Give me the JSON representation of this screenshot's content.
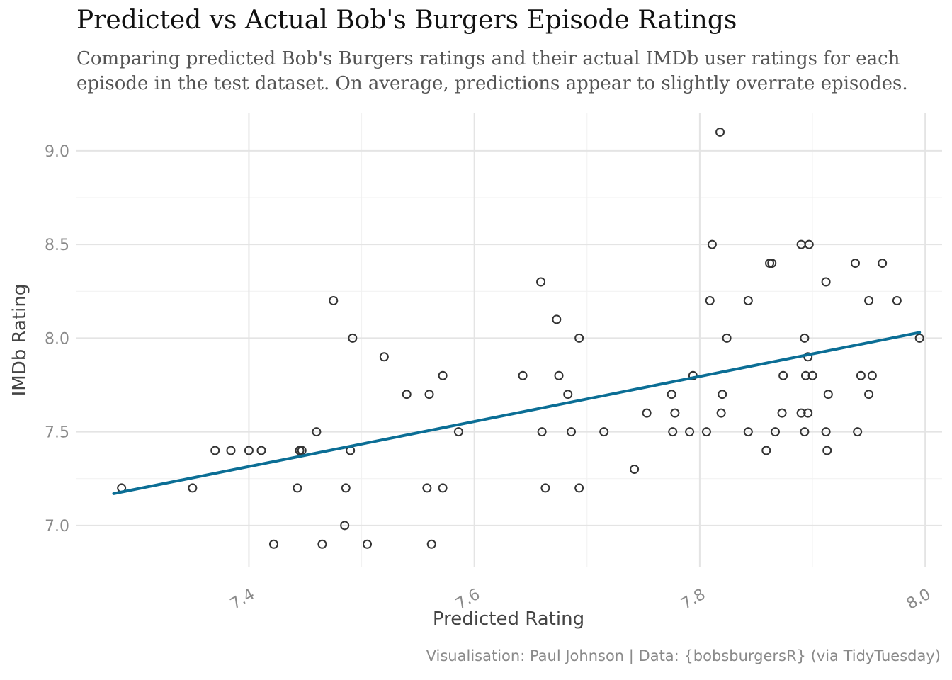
{
  "chart_data": {
    "type": "scatter",
    "title": "Predicted vs Actual Bob's Burgers Episode Ratings",
    "subtitle_lines": [
      "Comparing predicted Bob's Burgers ratings and their actual IMDb user ratings for each",
      "episode in the test dataset. On average, predictions appear to slightly overrate episodes."
    ],
    "xlabel": "Predicted Rating",
    "ylabel": "IMDb Rating",
    "caption": "Visualisation: Paul Johnson | Data: {bobsburgersR} (via TidyTuesday)",
    "xlim": [
      7.247,
      8.015
    ],
    "ylim": [
      6.78,
      9.2
    ],
    "x_ticks": [
      7.4,
      7.6,
      7.8,
      8.0
    ],
    "x_tick_labels": [
      "7.4",
      "7.6",
      "7.8",
      "8.0"
    ],
    "y_ticks": [
      7.0,
      7.5,
      8.0,
      8.5,
      9.0
    ],
    "y_tick_labels": [
      "7.0",
      "7.5",
      "8.0",
      "8.5",
      "9.0"
    ],
    "grid": true,
    "point_color": "#333333",
    "trend_color": "#0b6e95",
    "trend_line": {
      "x": [
        7.28,
        7.995
      ],
      "y": [
        7.17,
        8.03
      ]
    },
    "points": [
      {
        "x": 7.287,
        "y": 7.2
      },
      {
        "x": 7.35,
        "y": 7.2
      },
      {
        "x": 7.37,
        "y": 7.4
      },
      {
        "x": 7.384,
        "y": 7.4
      },
      {
        "x": 7.4,
        "y": 7.4
      },
      {
        "x": 7.411,
        "y": 7.4
      },
      {
        "x": 7.422,
        "y": 6.9
      },
      {
        "x": 7.443,
        "y": 7.2
      },
      {
        "x": 7.445,
        "y": 7.4
      },
      {
        "x": 7.447,
        "y": 7.4
      },
      {
        "x": 7.46,
        "y": 7.5
      },
      {
        "x": 7.465,
        "y": 6.9
      },
      {
        "x": 7.475,
        "y": 8.2
      },
      {
        "x": 7.485,
        "y": 7.0
      },
      {
        "x": 7.486,
        "y": 7.2
      },
      {
        "x": 7.49,
        "y": 7.4
      },
      {
        "x": 7.492,
        "y": 8.0
      },
      {
        "x": 7.505,
        "y": 6.9
      },
      {
        "x": 7.52,
        "y": 7.9
      },
      {
        "x": 7.54,
        "y": 7.7
      },
      {
        "x": 7.558,
        "y": 7.2
      },
      {
        "x": 7.56,
        "y": 7.7
      },
      {
        "x": 7.562,
        "y": 6.9
      },
      {
        "x": 7.572,
        "y": 7.2
      },
      {
        "x": 7.572,
        "y": 7.8
      },
      {
        "x": 7.586,
        "y": 7.5
      },
      {
        "x": 7.643,
        "y": 7.8
      },
      {
        "x": 7.659,
        "y": 8.3
      },
      {
        "x": 7.66,
        "y": 7.5
      },
      {
        "x": 7.663,
        "y": 7.2
      },
      {
        "x": 7.673,
        "y": 8.1
      },
      {
        "x": 7.675,
        "y": 7.8
      },
      {
        "x": 7.683,
        "y": 7.7
      },
      {
        "x": 7.686,
        "y": 7.5
      },
      {
        "x": 7.693,
        "y": 8.0
      },
      {
        "x": 7.693,
        "y": 7.2
      },
      {
        "x": 7.715,
        "y": 7.5
      },
      {
        "x": 7.742,
        "y": 7.3
      },
      {
        "x": 7.753,
        "y": 7.6
      },
      {
        "x": 7.775,
        "y": 7.7
      },
      {
        "x": 7.776,
        "y": 7.5
      },
      {
        "x": 7.778,
        "y": 7.6
      },
      {
        "x": 7.791,
        "y": 7.5
      },
      {
        "x": 7.794,
        "y": 7.8
      },
      {
        "x": 7.806,
        "y": 7.5
      },
      {
        "x": 7.809,
        "y": 8.2
      },
      {
        "x": 7.811,
        "y": 8.5
      },
      {
        "x": 7.818,
        "y": 9.1
      },
      {
        "x": 7.819,
        "y": 7.6
      },
      {
        "x": 7.82,
        "y": 7.7
      },
      {
        "x": 7.824,
        "y": 8.0
      },
      {
        "x": 7.843,
        "y": 7.5
      },
      {
        "x": 7.843,
        "y": 8.2
      },
      {
        "x": 7.859,
        "y": 7.4
      },
      {
        "x": 7.862,
        "y": 8.4
      },
      {
        "x": 7.864,
        "y": 8.4
      },
      {
        "x": 7.867,
        "y": 7.5
      },
      {
        "x": 7.873,
        "y": 7.6
      },
      {
        "x": 7.874,
        "y": 7.8
      },
      {
        "x": 7.89,
        "y": 8.5
      },
      {
        "x": 7.89,
        "y": 7.6
      },
      {
        "x": 7.893,
        "y": 7.5
      },
      {
        "x": 7.893,
        "y": 8.0
      },
      {
        "x": 7.894,
        "y": 7.8
      },
      {
        "x": 7.896,
        "y": 7.9
      },
      {
        "x": 7.896,
        "y": 7.6
      },
      {
        "x": 7.897,
        "y": 8.5
      },
      {
        "x": 7.9,
        "y": 7.8
      },
      {
        "x": 7.912,
        "y": 7.5
      },
      {
        "x": 7.912,
        "y": 8.3
      },
      {
        "x": 7.913,
        "y": 7.4
      },
      {
        "x": 7.914,
        "y": 7.7
      },
      {
        "x": 7.938,
        "y": 8.4
      },
      {
        "x": 7.94,
        "y": 7.5
      },
      {
        "x": 7.943,
        "y": 7.8
      },
      {
        "x": 7.95,
        "y": 7.7
      },
      {
        "x": 7.95,
        "y": 8.2
      },
      {
        "x": 7.953,
        "y": 7.8
      },
      {
        "x": 7.962,
        "y": 8.4
      },
      {
        "x": 7.975,
        "y": 8.2
      },
      {
        "x": 7.995,
        "y": 8.0
      }
    ]
  }
}
